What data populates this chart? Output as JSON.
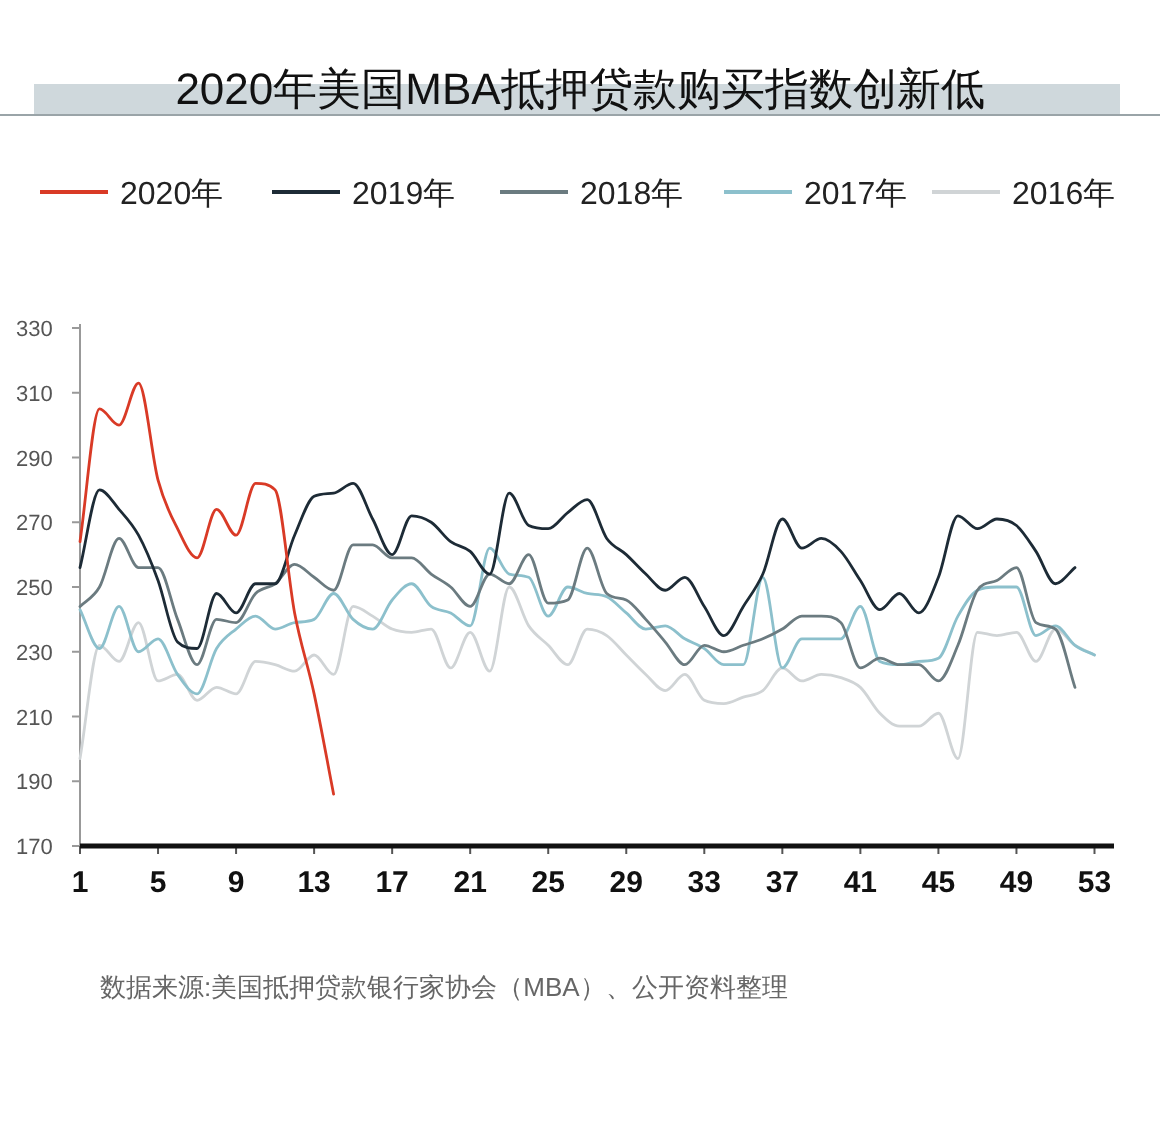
{
  "chart_data": {
    "type": "line",
    "title": "2020年美国MBA抵押贷款购买指数创新低",
    "annotations": [
      "数据来源:美国抵押贷款银行家协会（MBA）、公开资料整理"
    ],
    "legend": "top",
    "grid": false,
    "xlim": [
      1,
      54
    ],
    "xticks": [
      1,
      5,
      9,
      13,
      17,
      21,
      25,
      29,
      33,
      37,
      41,
      45,
      49,
      53
    ],
    "ylim": [
      170,
      330
    ],
    "yticks": [
      170,
      190,
      210,
      230,
      250,
      270,
      290,
      310,
      330
    ],
    "series": [
      {
        "name": "2020年",
        "color": "#d93a26",
        "x": [
          1,
          2,
          3,
          4,
          5,
          6,
          7,
          8,
          9,
          10,
          11,
          12,
          13,
          14
        ],
        "values": [
          264,
          305,
          300,
          313,
          283,
          268,
          259,
          274,
          266,
          282,
          280,
          242,
          217,
          186
        ]
      },
      {
        "name": "2019年",
        "color": "#1d2b36",
        "x": [
          1,
          2,
          3,
          4,
          5,
          6,
          7,
          8,
          9,
          10,
          11,
          12,
          13,
          14,
          15,
          16,
          17,
          18,
          19,
          20,
          21,
          22,
          23,
          24,
          25,
          26,
          27,
          28,
          29,
          30,
          31,
          32,
          33,
          34,
          35,
          36,
          37,
          38,
          39,
          40,
          41,
          42,
          43,
          44,
          45,
          46,
          47,
          48,
          49,
          50,
          51,
          52
        ],
        "values": [
          256,
          280,
          274,
          266,
          252,
          233,
          231,
          248,
          242,
          251,
          251,
          266,
          278,
          279,
          282,
          271,
          260,
          272,
          270,
          264,
          261,
          254,
          279,
          269,
          268,
          273,
          277,
          265,
          260,
          254,
          249,
          253,
          244,
          235,
          244,
          254,
          271,
          262,
          265,
          261,
          252,
          243,
          248,
          242,
          253,
          272,
          268,
          271,
          269,
          261,
          251,
          256
        ]
      },
      {
        "name": "2018年",
        "color": "#6b7b80",
        "x": [
          1,
          2,
          3,
          4,
          5,
          6,
          7,
          8,
          9,
          10,
          11,
          12,
          13,
          14,
          15,
          16,
          17,
          18,
          19,
          20,
          21,
          22,
          23,
          24,
          25,
          26,
          27,
          28,
          29,
          30,
          31,
          32,
          33,
          34,
          35,
          36,
          37,
          38,
          39,
          40,
          41,
          42,
          43,
          44,
          45,
          46,
          47,
          48,
          49,
          50,
          51,
          52
        ],
        "values": [
          244,
          250,
          265,
          256,
          256,
          240,
          226,
          240,
          239,
          248,
          251,
          257,
          253,
          249,
          263,
          263,
          259,
          259,
          254,
          250,
          244,
          254,
          251,
          260,
          245,
          246,
          262,
          248,
          246,
          240,
          233,
          226,
          232,
          230,
          232,
          234,
          237,
          241,
          241,
          239,
          225,
          228,
          226,
          226,
          221,
          232,
          249,
          252,
          256,
          239,
          237,
          219
        ]
      },
      {
        "name": "2017年",
        "color": "#8cc0cc",
        "x": [
          1,
          2,
          3,
          4,
          5,
          6,
          7,
          8,
          9,
          10,
          11,
          12,
          13,
          14,
          15,
          16,
          17,
          18,
          19,
          20,
          21,
          22,
          23,
          24,
          25,
          26,
          27,
          28,
          29,
          30,
          31,
          32,
          33,
          34,
          35,
          36,
          37,
          38,
          39,
          40,
          41,
          42,
          43,
          44,
          45,
          46,
          47,
          48,
          49,
          50,
          51,
          52,
          53
        ],
        "values": [
          243,
          231,
          244,
          230,
          234,
          223,
          217,
          231,
          237,
          241,
          237,
          239,
          240,
          248,
          240,
          237,
          246,
          251,
          244,
          242,
          238,
          262,
          254,
          253,
          241,
          250,
          248,
          247,
          242,
          237,
          238,
          234,
          231,
          226,
          226,
          253,
          225,
          234,
          234,
          234,
          244,
          227,
          226,
          227,
          228,
          241,
          249,
          250,
          250,
          235,
          238,
          232,
          229
        ]
      },
      {
        "name": "2016年",
        "color": "#d0d4d6",
        "x": [
          1,
          2,
          3,
          4,
          5,
          6,
          7,
          8,
          9,
          10,
          11,
          12,
          13,
          14,
          15,
          16,
          17,
          18,
          19,
          20,
          21,
          22,
          23,
          24,
          25,
          26,
          27,
          28,
          29,
          30,
          31,
          32,
          33,
          34,
          35,
          36,
          37,
          38,
          39,
          40,
          41,
          42,
          43,
          44,
          45,
          46,
          47,
          48,
          49,
          50,
          51,
          52,
          53
        ],
        "values": [
          197,
          232,
          227,
          239,
          221,
          223,
          215,
          219,
          217,
          227,
          226,
          224,
          229,
          223,
          244,
          241,
          237,
          236,
          237,
          225,
          236,
          224,
          250,
          238,
          232,
          226,
          237,
          235,
          229,
          223,
          218,
          223,
          215,
          214,
          216,
          218,
          225,
          221,
          223,
          222,
          219,
          211,
          207,
          207,
          211,
          197,
          236,
          235,
          236,
          227,
          237,
          232,
          229
        ]
      }
    ]
  }
}
